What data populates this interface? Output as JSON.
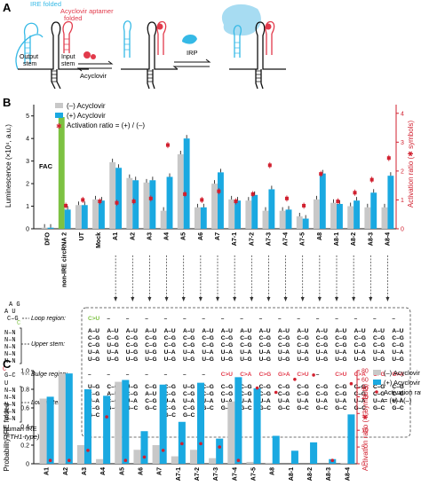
{
  "panelA": {
    "label": "A",
    "ire_folded": "IRE folded",
    "aptamer_folded_line1": "Acyclovir aptamer",
    "aptamer_folded_line2": "folded",
    "output_stem_line1": "Output",
    "output_stem_line2": "stem",
    "input_stem_line1": "Input",
    "input_stem_line2": "stem",
    "acyclovir": "Acyclovir",
    "irp": "IRP"
  },
  "panelB": {
    "label": "B",
    "ylabel_left": "Luminescence (×10⁴, a.u.)",
    "ylabel_right": "Activation ratio (✱ symbols)",
    "legend": [
      "(–) Acyclovir",
      "(+) Acyclovir",
      "Activation ratio = (+) / (–)"
    ],
    "fac": "FAC",
    "yticks_left": [
      "0",
      "1",
      "2",
      "3",
      "4",
      "5"
    ],
    "yticks_right": [
      "0",
      "1",
      "2",
      "3",
      "4"
    ],
    "categories": [
      "DFO",
      "non-IRE circRNA 2",
      "UT",
      "Mock",
      "A1",
      "A2",
      "A3",
      "A4",
      "A5",
      "A6",
      "A7",
      "A7-1",
      "A7-2",
      "A7-3",
      "A7-4",
      "A7-5",
      "A8",
      "A8-1",
      "A8-2",
      "A8-3",
      "A8-4"
    ],
    "human_ire_line1": "human IRE",
    "human_ire_line2": "(FTH1-type)",
    "loop_region": "Loop region:",
    "upper_stem": "Upper stem:",
    "bulge_region": "Bulge region:",
    "lower_stem": "Lower stem:",
    "loop_c_to_u": "C>U"
  },
  "chart_data": [
    {
      "type": "bar",
      "title": "",
      "ylabel": "Luminescence (×10⁴, a.u.)",
      "y2label": "Activation ratio (✱ symbols)",
      "ylim": [
        0,
        5.5
      ],
      "y2lim": [
        0,
        4.3
      ],
      "categories": [
        "DFO",
        "non-IRE circRNA 2",
        "UT",
        "Mock",
        "A1",
        "A2",
        "A3",
        "A4",
        "A5",
        "A6",
        "A7",
        "A7-1",
        "A7-2",
        "A7-3",
        "A7-4",
        "A7-5",
        "A8",
        "A8-1",
        "A8-2",
        "A8-3",
        "A8-4"
      ],
      "series": [
        {
          "name": "(–) Acyclovir",
          "values": [
            0.05,
            1.0,
            1.05,
            1.3,
            2.95,
            2.25,
            2.05,
            0.8,
            3.3,
            0.95,
            2.0,
            1.3,
            1.25,
            0.8,
            0.8,
            0.55,
            1.3,
            1.15,
            1.0,
            0.95,
            0.95
          ]
        },
        {
          "name": "(+) Acyclovir",
          "values": [
            0.05,
            0.85,
            1.05,
            1.25,
            2.7,
            2.15,
            2.15,
            2.3,
            4.0,
            0.95,
            2.5,
            1.25,
            1.5,
            1.75,
            0.85,
            0.45,
            2.45,
            1.1,
            1.25,
            1.6,
            2.35
          ]
        },
        {
          "name": "Activation ratio = (+) / (–)",
          "values": [
            null,
            0.8,
            1.0,
            0.95,
            0.9,
            0.95,
            1.05,
            2.9,
            1.2,
            1.0,
            1.3,
            0.95,
            1.2,
            2.2,
            1.05,
            0.8,
            1.9,
            0.95,
            1.25,
            1.7,
            2.45
          ]
        }
      ],
      "annotations": [
        "FAC"
      ]
    },
    {
      "type": "bar",
      "title": "",
      "ylabel": "Probability IRE folded",
      "y2label": "Activation ratio (✱ symbols)",
      "ylim": [
        0,
        1
      ],
      "y2lim": [
        0,
        80
      ],
      "categories": [
        "A1",
        "A2",
        "A3",
        "A4",
        "A5",
        "A6",
        "A7",
        "A7-1",
        "A7-2",
        "A7-3",
        "A7-4",
        "A7-5",
        "A8",
        "A8-1",
        "A8-2",
        "A8-3",
        "A8-4"
      ],
      "series": [
        {
          "name": "(–) Acyclovir",
          "values": [
            0.7,
            0.97,
            0.2,
            0.05,
            0.88,
            0.15,
            0.2,
            0.08,
            0.15,
            0.06,
            0.67,
            0.02,
            0.01,
            0.0,
            0.0,
            0.0,
            0.01
          ]
        },
        {
          "name": "(+) Acyclovir",
          "values": [
            0.72,
            0.97,
            0.8,
            0.73,
            0.9,
            0.35,
            0.85,
            0.45,
            0.87,
            0.27,
            0.93,
            0.81,
            0.3,
            0.14,
            0.23,
            0.05,
            0.53
          ]
        },
        {
          "name": "Activation ratio = (+) / (–)",
          "values": [
            1,
            1,
            4,
            14,
            1,
            2,
            4,
            6,
            6,
            5,
            1,
            40,
            30,
            60,
            70,
            1,
            50
          ]
        }
      ],
      "legend": [
        "(–) Acyclovir",
        "(+) Acyclovir",
        "Activation ratio = (+) / (–)"
      ],
      "y2ticks": [
        "0",
        "5",
        "10",
        "15",
        "20",
        "40",
        "60",
        "80"
      ]
    }
  ],
  "panelC": {
    "label": "C",
    "ylabel_left": "Probability IRE folded",
    "ylabel_right_1": "Activation ratio (✱ symbols)",
    "yticks_left": [
      "0",
      "0.2",
      "0.4",
      "0.6",
      "0.8",
      "1.0"
    ],
    "yticks_right": [
      "0",
      "5",
      "10",
      "15",
      "20",
      "40",
      "60",
      "80"
    ],
    "legend": [
      "(–) Acyclovir",
      "(+) Acyclovir",
      "Activation ratio",
      "= (+) / (–)"
    ]
  },
  "colors": {
    "minus": "#c8c8c8",
    "plus": "#1aa9e1",
    "ratio": "#d1202f",
    "fac": "#7dc242",
    "ire": "#35b9e6",
    "aptamer": "#e23a4b"
  }
}
